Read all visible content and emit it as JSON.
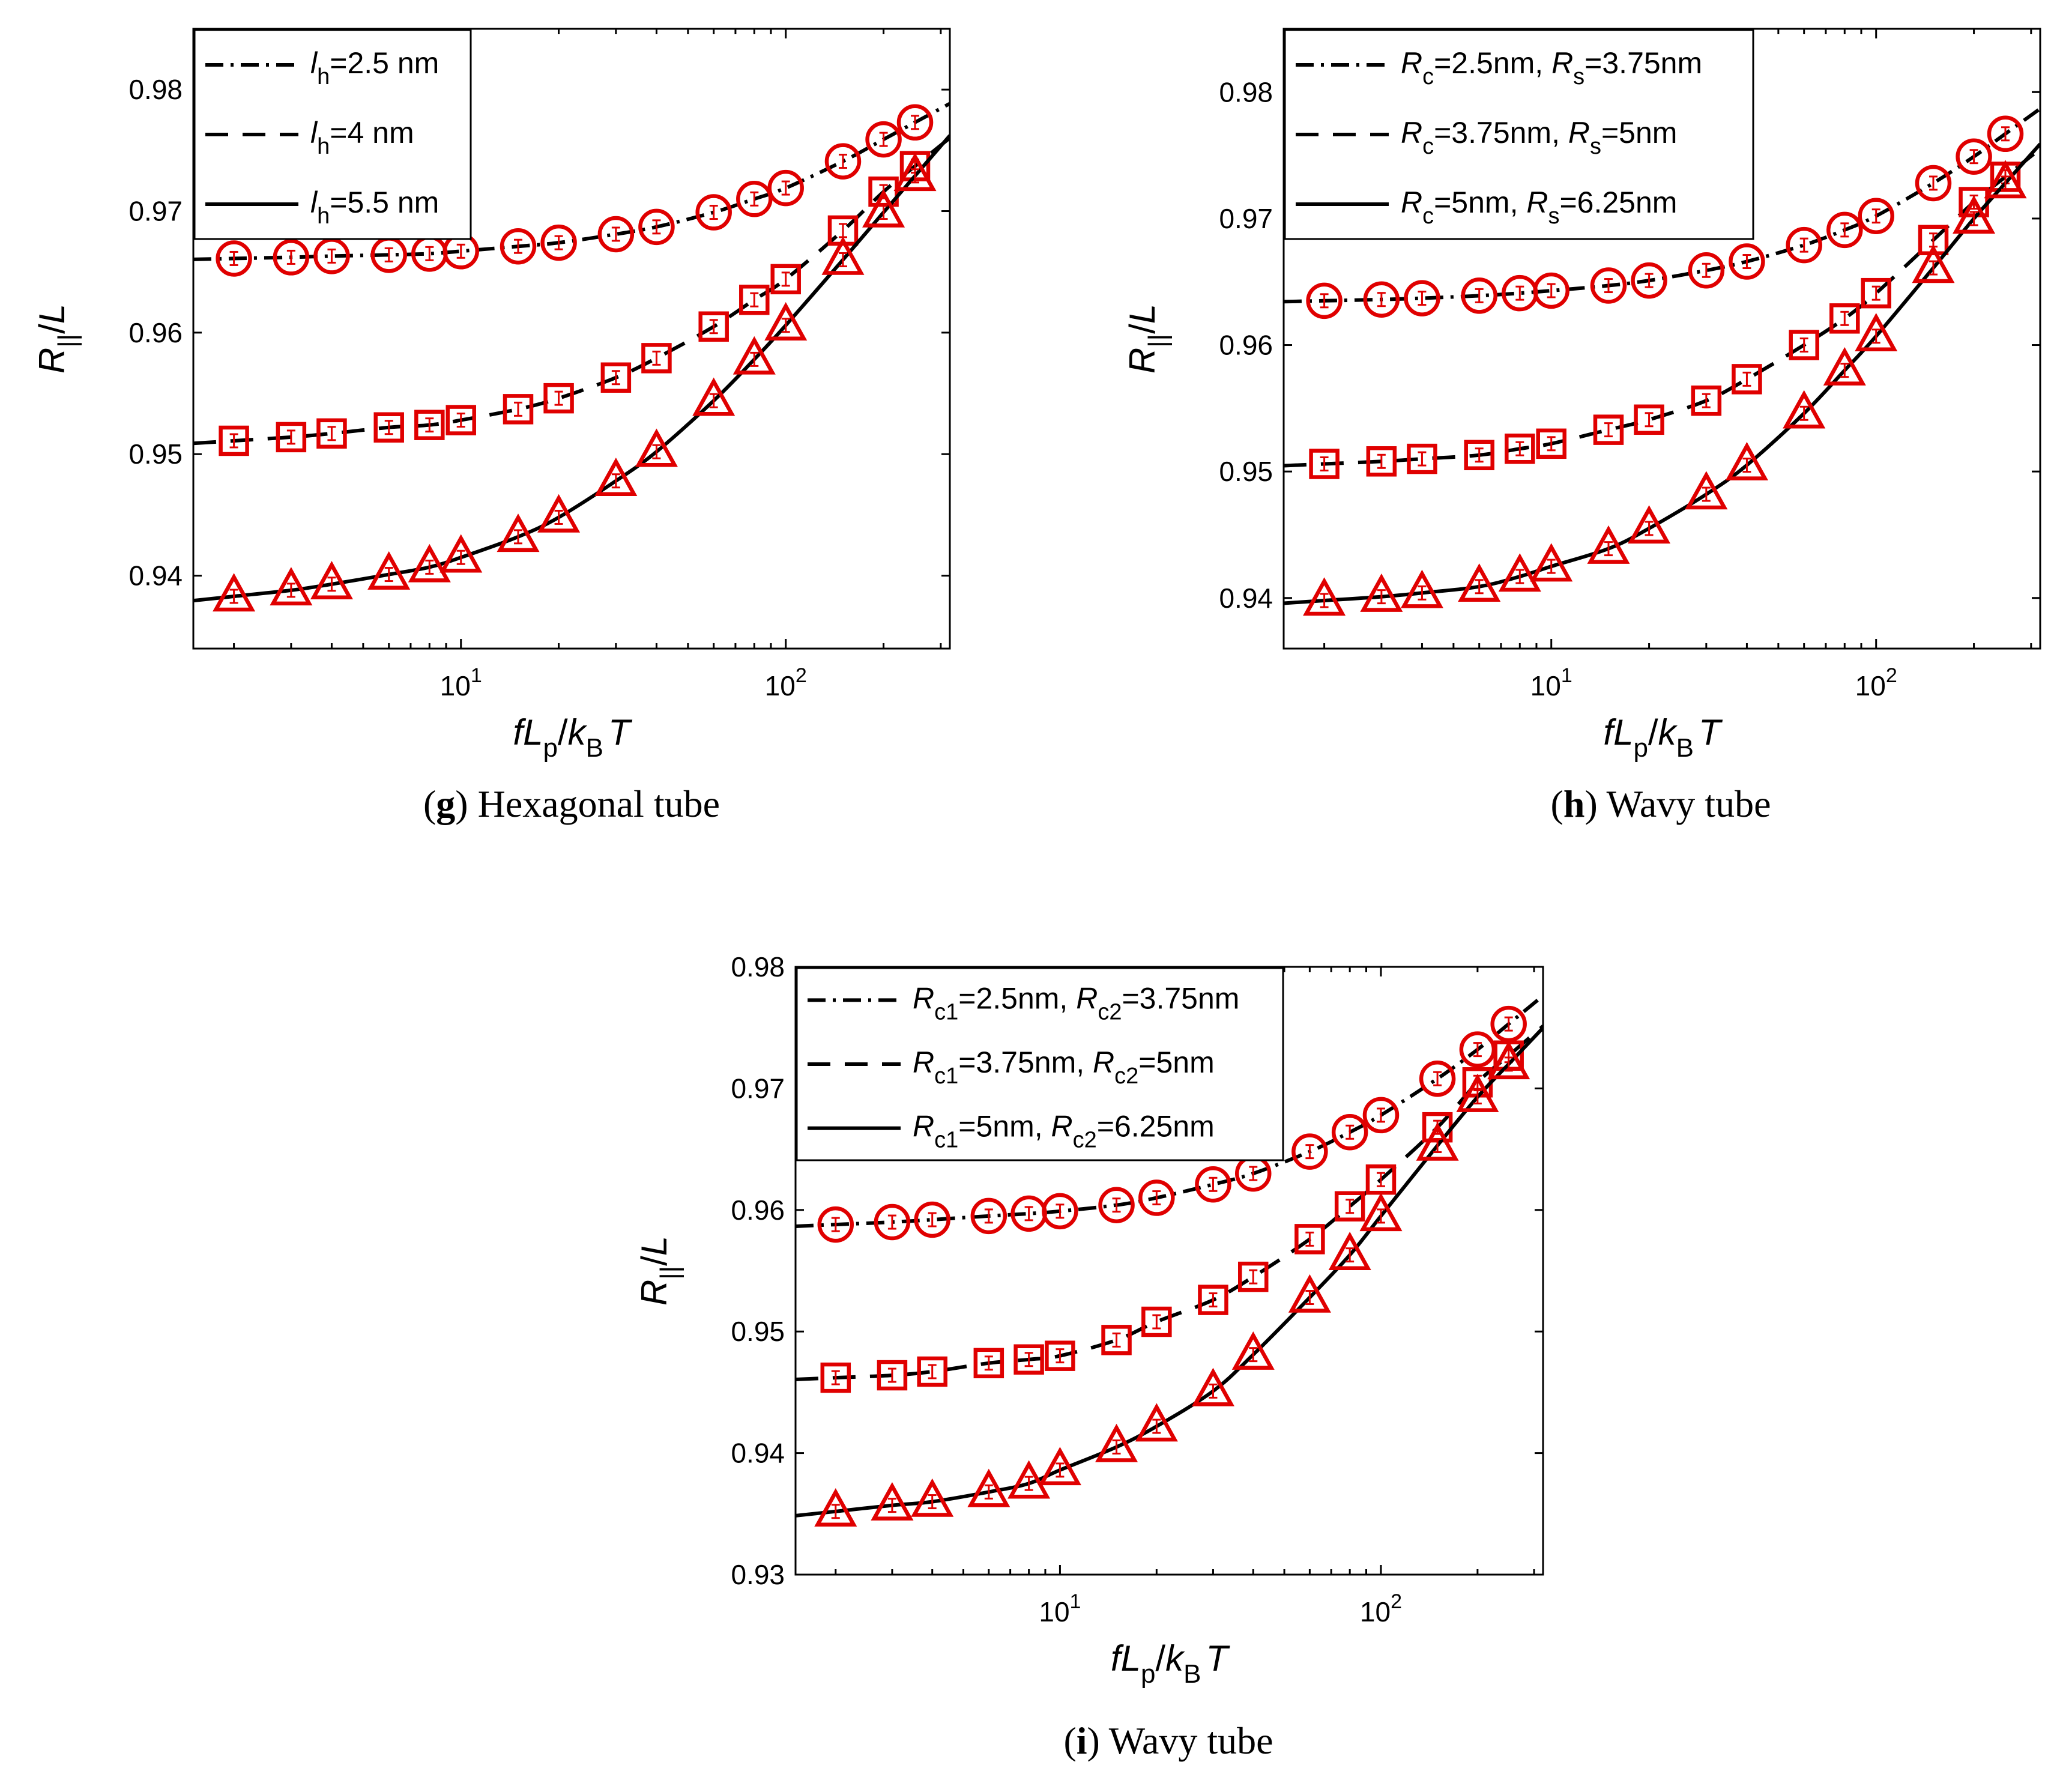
{
  "chart_data": [
    {
      "id": "g",
      "type": "line",
      "panel_label": "g",
      "caption": "Hexagonal tube",
      "xscale": "log",
      "xlim": [
        1.5,
        320
      ],
      "ylim": [
        0.934,
        0.985
      ],
      "yticks": [
        "0.94",
        "0.95",
        "0.96",
        "0.97",
        "0.98"
      ],
      "xticks": [
        {
          "base": "10",
          "exp": "1",
          "value": 10
        },
        {
          "base": "10",
          "exp": "2",
          "value": 100
        }
      ],
      "xlabel_parts": [
        "f",
        "L",
        "p",
        "/",
        "k",
        "B",
        "T"
      ],
      "ylabel_parts": [
        "R",
        "||",
        "/",
        "L"
      ],
      "legend_position": "top-left",
      "legend": [
        {
          "var": "l",
          "sub": "h",
          "rest": "=2.5 nm",
          "style": "dashdot"
        },
        {
          "var": "l",
          "sub": "h",
          "rest": "=4 nm",
          "style": "dashed"
        },
        {
          "var": "l",
          "sub": "h",
          "rest": "=5.5 nm",
          "style": "solid"
        }
      ],
      "x": [
        2,
        3,
        4,
        6,
        8,
        10,
        15,
        20,
        30,
        40,
        60,
        80,
        100,
        150,
        200,
        250
      ],
      "series": [
        {
          "name": "l_h=2.5 nm",
          "marker": "circle",
          "line": "dashdot",
          "values": [
            0.9661,
            0.9662,
            0.9663,
            0.9664,
            0.9665,
            0.9667,
            0.9671,
            0.9674,
            0.9681,
            0.9687,
            0.9699,
            0.971,
            0.9719,
            0.9741,
            0.9759,
            0.9773
          ]
        },
        {
          "name": "l_h=4 nm",
          "marker": "square",
          "line": "dashed",
          "values": [
            0.9511,
            0.9514,
            0.9517,
            0.9522,
            0.9524,
            0.9528,
            0.9537,
            0.9546,
            0.9563,
            0.9579,
            0.9605,
            0.9627,
            0.9644,
            0.9684,
            0.9716,
            0.9737
          ]
        },
        {
          "name": "l_h=5.5 nm",
          "marker": "triangle",
          "line": "solid",
          "values": [
            0.9383,
            0.9388,
            0.9393,
            0.9401,
            0.9407,
            0.9415,
            0.9432,
            0.9448,
            0.9478,
            0.9502,
            0.9544,
            0.9578,
            0.9606,
            0.966,
            0.9699,
            0.9729
          ]
        }
      ]
    },
    {
      "id": "h",
      "type": "line",
      "panel_label": "h",
      "caption": "Wavy tube",
      "xscale": "log",
      "xlim": [
        1.5,
        320
      ],
      "ylim": [
        0.936,
        0.985
      ],
      "yticks": [
        "0.94",
        "0.95",
        "0.96",
        "0.97",
        "0.98"
      ],
      "xticks": [
        {
          "base": "10",
          "exp": "1",
          "value": 10
        },
        {
          "base": "10",
          "exp": "2",
          "value": 100
        }
      ],
      "xlabel_parts": [
        "f",
        "L",
        "p",
        "/",
        "k",
        "B",
        "T"
      ],
      "ylabel_parts": [
        "R",
        "||",
        "/",
        "L"
      ],
      "legend_position": "top-left",
      "legend": [
        {
          "v1": "R",
          "s1": "c",
          "r1": "=2.5nm, ",
          "v2": "R",
          "s2": "s",
          "r2": "=3.75nm",
          "style": "dashdot"
        },
        {
          "v1": "R",
          "s1": "c",
          "r1": "=3.75nm, ",
          "v2": "R",
          "s2": "s",
          "r2": "=5nm",
          "style": "dashed"
        },
        {
          "v1": "R",
          "s1": "c",
          "r1": "=5nm, ",
          "v2": "R",
          "s2": "s",
          "r2": "=6.25nm",
          "style": "solid"
        }
      ],
      "x": [
        2,
        3,
        4,
        6,
        8,
        10,
        15,
        20,
        30,
        40,
        60,
        80,
        100,
        150,
        200,
        250
      ],
      "series": [
        {
          "name": "R_c=2.5nm, R_s=3.75nm",
          "marker": "circle",
          "line": "dashdot",
          "values": [
            0.9635,
            0.9636,
            0.9637,
            0.9639,
            0.9641,
            0.9643,
            0.9647,
            0.9651,
            0.9659,
            0.9666,
            0.9679,
            0.9691,
            0.9702,
            0.9728,
            0.9749,
            0.9767
          ]
        },
        {
          "name": "R_c=3.75nm, R_s=5nm",
          "marker": "square",
          "line": "dashed",
          "values": [
            0.9506,
            0.9508,
            0.951,
            0.9513,
            0.9518,
            0.9522,
            0.9533,
            0.9541,
            0.9556,
            0.9573,
            0.96,
            0.9621,
            0.9641,
            0.9683,
            0.9713,
            0.9733
          ]
        },
        {
          "name": "R_c=5nm, R_s=6.25nm",
          "marker": "triangle",
          "line": "solid",
          "values": [
            0.9398,
            0.9401,
            0.9404,
            0.9409,
            0.9417,
            0.9425,
            0.9439,
            0.9455,
            0.9482,
            0.9505,
            0.9546,
            0.958,
            0.9607,
            0.9661,
            0.97,
            0.9728
          ]
        }
      ]
    },
    {
      "id": "i",
      "type": "line",
      "panel_label": "i",
      "caption": "Wavy tube",
      "xscale": "log",
      "xlim": [
        1.5,
        320
      ],
      "ylim": [
        0.93,
        0.98
      ],
      "yticks": [
        "0.93",
        "0.94",
        "0.95",
        "0.96",
        "0.97",
        "0.98"
      ],
      "xticks": [
        {
          "base": "10",
          "exp": "1",
          "value": 10
        },
        {
          "base": "10",
          "exp": "2",
          "value": 100
        }
      ],
      "xlabel_parts": [
        "f",
        "L",
        "p",
        "/",
        "k",
        "B",
        "T"
      ],
      "ylabel_parts": [
        "R",
        "||",
        "/",
        "L"
      ],
      "legend_position": "top-left",
      "legend": [
        {
          "v1": "R",
          "s1": "c1",
          "r1": "=2.5nm, ",
          "v2": "R",
          "s2": "c2",
          "r2": "=3.75nm",
          "style": "dashdot"
        },
        {
          "v1": "R",
          "s1": "c1",
          "r1": "=3.75nm, ",
          "v2": "R",
          "s2": "c2",
          "r2": "=5nm",
          "style": "dashed"
        },
        {
          "v1": "R",
          "s1": "c1",
          "r1": "=5nm, ",
          "v2": "R",
          "s2": "c2",
          "r2": "=6.25nm",
          "style": "solid"
        }
      ],
      "x": [
        2,
        3,
        4,
        6,
        8,
        10,
        15,
        20,
        30,
        40,
        60,
        80,
        100,
        150,
        200,
        250
      ],
      "series": [
        {
          "name": "R_c1=2.5nm, R_c2=3.75nm",
          "marker": "circle",
          "line": "dashdot",
          "values": [
            0.9588,
            0.959,
            0.9592,
            0.9595,
            0.9597,
            0.9599,
            0.9604,
            0.961,
            0.9621,
            0.963,
            0.9648,
            0.9664,
            0.9678,
            0.9708,
            0.9732,
            0.9753
          ]
        },
        {
          "name": "R_c1=3.75nm, R_c2=5nm",
          "marker": "square",
          "line": "dashed",
          "values": [
            0.9462,
            0.9464,
            0.9467,
            0.9474,
            0.9477,
            0.948,
            0.9493,
            0.9508,
            0.9526,
            0.9545,
            0.9576,
            0.9603,
            0.9625,
            0.9668,
            0.9705,
            0.9727
          ]
        },
        {
          "name": "R_c1=5nm, R_c2=6.25nm",
          "marker": "triangle",
          "line": "solid",
          "values": [
            0.9352,
            0.9357,
            0.936,
            0.9368,
            0.9375,
            0.9386,
            0.9405,
            0.9422,
            0.9451,
            0.9481,
            0.9528,
            0.9563,
            0.9595,
            0.9653,
            0.9693,
            0.972
          ]
        }
      ]
    }
  ]
}
